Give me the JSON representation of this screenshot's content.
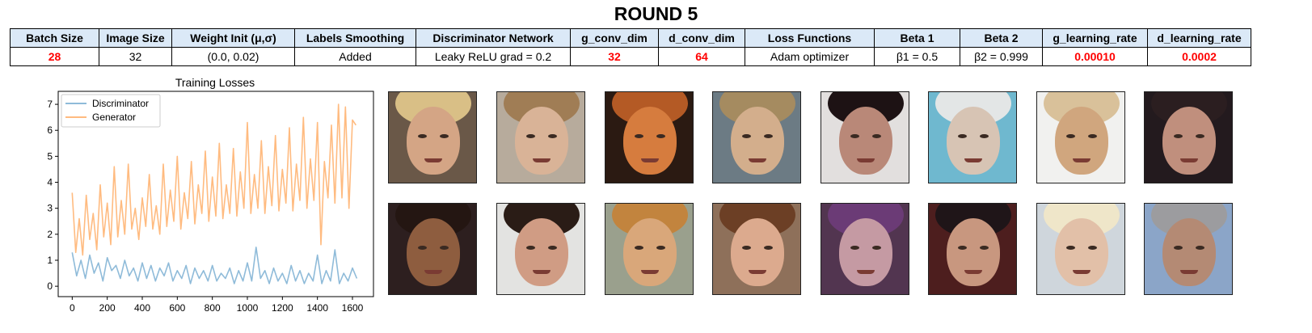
{
  "title": "ROUND 5",
  "params": {
    "headers": [
      "Batch Size",
      "Image Size",
      "Weight Init (μ,σ)",
      "Labels Smoothing",
      "Discriminator Network",
      "g_conv_dim",
      "d_conv_dim",
      "Loss Functions",
      "Beta 1",
      "Beta 2",
      "g_learning_rate",
      "d_learning_rate"
    ],
    "values": [
      "28",
      "32",
      "(0.0, 0.02)",
      "Added",
      "Leaky ReLU grad = 0.2",
      "32",
      "64",
      "Adam optimizer",
      "β1 = 0.5",
      "β2 = 0.999",
      "0.00010",
      "0.0002"
    ],
    "highlight_color": "#ff0000",
    "header_bg": "#dbe9f7"
  },
  "chart_data": {
    "type": "line",
    "title": "Training Losses",
    "xlabel": "",
    "ylabel": "",
    "xlim": [
      -80,
      1720
    ],
    "ylim": [
      -0.4,
      7.5
    ],
    "xticks": [
      0,
      200,
      400,
      600,
      800,
      1000,
      1200,
      1400,
      1600
    ],
    "yticks": [
      0,
      1,
      2,
      3,
      4,
      5,
      6,
      7
    ],
    "legend_position": "top-left",
    "grid": false,
    "series": [
      {
        "name": "Discriminator",
        "color": "#8fbbd9",
        "x": [
          0,
          25,
          50,
          75,
          100,
          125,
          150,
          175,
          200,
          225,
          250,
          275,
          300,
          325,
          350,
          375,
          400,
          425,
          450,
          475,
          500,
          525,
          550,
          575,
          600,
          625,
          650,
          675,
          700,
          725,
          750,
          775,
          800,
          825,
          850,
          875,
          900,
          925,
          950,
          975,
          1000,
          1025,
          1050,
          1075,
          1100,
          1125,
          1150,
          1175,
          1200,
          1225,
          1250,
          1275,
          1300,
          1325,
          1350,
          1375,
          1400,
          1425,
          1450,
          1475,
          1500,
          1525,
          1550,
          1575,
          1600,
          1625
        ],
        "values": [
          1.3,
          0.4,
          1.0,
          0.3,
          1.2,
          0.5,
          0.9,
          0.2,
          1.1,
          0.6,
          0.8,
          0.3,
          1.0,
          0.4,
          0.7,
          0.2,
          0.9,
          0.3,
          0.8,
          0.2,
          0.7,
          0.4,
          0.9,
          0.2,
          0.6,
          0.3,
          0.8,
          0.1,
          0.7,
          0.3,
          0.6,
          0.2,
          0.8,
          0.2,
          0.5,
          0.3,
          0.7,
          0.1,
          0.6,
          0.2,
          0.9,
          0.2,
          1.5,
          0.3,
          0.6,
          0.1,
          0.7,
          0.2,
          0.5,
          0.1,
          0.8,
          0.2,
          0.6,
          0.1,
          0.5,
          0.2,
          1.2,
          0.1,
          0.6,
          0.2,
          1.4,
          0.1,
          0.5,
          0.2,
          0.7,
          0.3
        ]
      },
      {
        "name": "Generator",
        "color": "#ffbb80",
        "x": [
          0,
          20,
          40,
          60,
          80,
          100,
          120,
          140,
          160,
          180,
          200,
          220,
          240,
          260,
          280,
          300,
          320,
          340,
          360,
          380,
          400,
          420,
          440,
          460,
          480,
          500,
          520,
          540,
          560,
          580,
          600,
          620,
          640,
          660,
          680,
          700,
          720,
          740,
          760,
          780,
          800,
          820,
          840,
          860,
          880,
          900,
          920,
          940,
          960,
          980,
          1000,
          1020,
          1040,
          1060,
          1080,
          1100,
          1120,
          1140,
          1160,
          1180,
          1200,
          1220,
          1240,
          1260,
          1280,
          1300,
          1320,
          1340,
          1360,
          1380,
          1400,
          1420,
          1440,
          1460,
          1480,
          1500,
          1520,
          1540,
          1560,
          1580,
          1600,
          1620
        ],
        "values": [
          3.6,
          1.3,
          2.6,
          1.2,
          3.5,
          1.8,
          2.8,
          1.4,
          3.9,
          1.9,
          3.2,
          1.6,
          4.6,
          1.9,
          3.3,
          2.0,
          4.7,
          2.2,
          3.0,
          1.8,
          3.4,
          2.3,
          4.3,
          2.2,
          3.1,
          2.0,
          4.7,
          2.3,
          3.7,
          2.5,
          5.0,
          2.2,
          3.6,
          2.6,
          4.8,
          2.4,
          3.9,
          2.8,
          5.2,
          2.5,
          4.2,
          2.7,
          5.5,
          2.6,
          3.9,
          2.8,
          5.3,
          2.7,
          4.4,
          3.0,
          6.3,
          2.8,
          4.3,
          3.0,
          5.6,
          2.8,
          4.6,
          3.1,
          5.8,
          2.9,
          4.5,
          3.2,
          6.1,
          2.9,
          4.7,
          3.3,
          6.5,
          3.0,
          4.9,
          3.3,
          6.3,
          1.6,
          4.8,
          3.4,
          6.2,
          3.2,
          7.0,
          3.4,
          6.9,
          3.0,
          6.4,
          6.2
        ]
      }
    ]
  },
  "faces": {
    "rows": [
      [
        {
          "bg": "#6a5848",
          "hair": "#d9bf86",
          "skin": "#d4a585"
        },
        {
          "bg": "#b7ab9c",
          "hair": "#a07d55",
          "skin": "#d9b397"
        },
        {
          "bg": "#2b1a12",
          "hair": "#b45a25",
          "skin": "#d67c3e"
        },
        {
          "bg": "#6c7b84",
          "hair": "#a58b60",
          "skin": "#d3ae8c"
        },
        {
          "bg": "#e2dfde",
          "hair": "#1d1214",
          "skin": "#b98878"
        },
        {
          "bg": "#6fb8cf",
          "hair": "#e3e6e6",
          "skin": "#d7c4b4"
        },
        {
          "bg": "#f1f1ef",
          "hair": "#d9c19a",
          "skin": "#d0a67e"
        },
        {
          "bg": "#231a1e",
          "hair": "#2b1e20",
          "skin": "#c08f7d"
        }
      ],
      [
        {
          "bg": "#2d1f1f",
          "hair": "#241612",
          "skin": "#8e5d3f"
        },
        {
          "bg": "#e3e3e1",
          "hair": "#2a1c16",
          "skin": "#d09c84"
        },
        {
          "bg": "#9aa08d",
          "hair": "#c2843e",
          "skin": "#d9a77a"
        },
        {
          "bg": "#8e705a",
          "hair": "#6c3f25",
          "skin": "#dcaa8e"
        },
        {
          "bg": "#523550",
          "hair": "#6b3b76",
          "skin": "#c59aa3"
        },
        {
          "bg": "#4d1e1e",
          "hair": "#1f1518",
          "skin": "#c8977f"
        },
        {
          "bg": "#cfd6dc",
          "hair": "#efe6c9",
          "skin": "#e2c0a8"
        },
        {
          "bg": "#8ba5c8",
          "hair": "#9c9c9f",
          "skin": "#b48a74"
        }
      ]
    ]
  }
}
